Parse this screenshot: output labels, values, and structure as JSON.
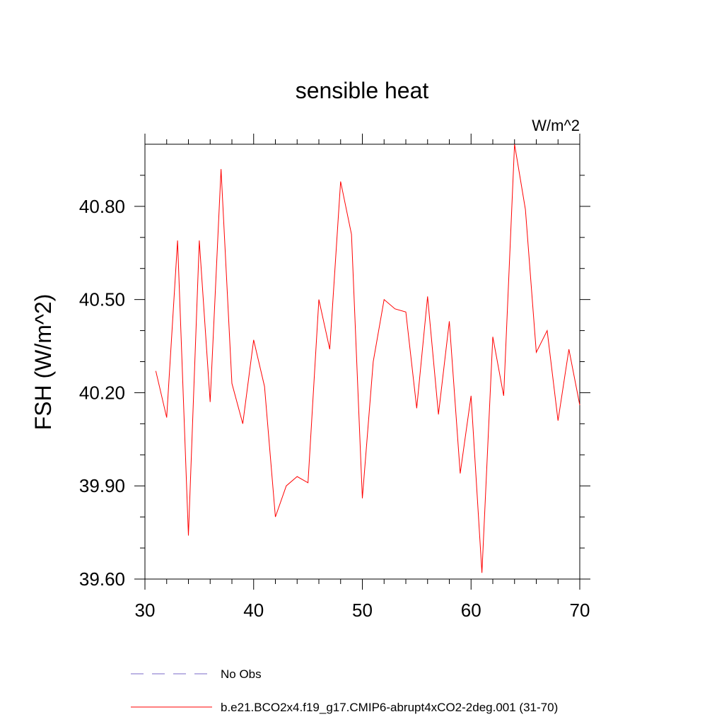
{
  "chart_data": {
    "type": "line",
    "title": "sensible heat",
    "units_label": "W/m^2",
    "ylabel": "FSH  (W/m^2)",
    "xlabel": "",
    "xlim": [
      30,
      70
    ],
    "ylim": [
      39.6,
      41.0
    ],
    "xticks": [
      30,
      40,
      50,
      60,
      70
    ],
    "xtick_labels": [
      "30",
      "40",
      "50",
      "60",
      "70"
    ],
    "yticks": [
      39.6,
      39.9,
      40.2,
      40.5,
      40.8
    ],
    "ytick_labels": [
      "39.60",
      "39.90",
      "40.20",
      "40.50",
      "40.80"
    ],
    "grid": false,
    "legend_position": "bottom",
    "legend": [
      {
        "label": "No Obs",
        "style": "dashed",
        "color": "#7b68c8"
      },
      {
        "label": "b.e21.BCO2x4.f19_g17.CMIP6-abrupt4xCO2-2deg.001 (31-70)",
        "style": "solid",
        "color": "#ff0000"
      }
    ],
    "series": [
      {
        "name": "b.e21.BCO2x4.f19_g17.CMIP6-abrupt4xCO2-2deg.001 (31-70)",
        "color": "#ff0000",
        "x": [
          31,
          32,
          33,
          34,
          35,
          36,
          37,
          38,
          39,
          40,
          41,
          42,
          43,
          44,
          45,
          46,
          47,
          48,
          49,
          50,
          51,
          52,
          53,
          54,
          55,
          56,
          57,
          58,
          59,
          60,
          61,
          62,
          63,
          64,
          65,
          66,
          67,
          68,
          69,
          70
        ],
        "y": [
          40.27,
          40.12,
          40.69,
          39.74,
          40.69,
          40.17,
          40.92,
          40.23,
          40.1,
          40.37,
          40.22,
          39.8,
          39.9,
          39.93,
          39.91,
          40.5,
          40.34,
          40.88,
          40.71,
          39.86,
          40.3,
          40.5,
          40.47,
          40.46,
          40.15,
          40.51,
          40.13,
          40.43,
          39.94,
          40.19,
          39.62,
          40.38,
          40.19,
          41.0,
          40.79,
          40.33,
          40.4,
          40.11,
          40.34,
          40.16
        ]
      }
    ]
  }
}
